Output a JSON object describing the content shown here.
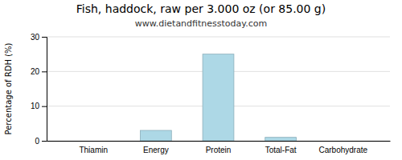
{
  "chart_data": {
    "type": "bar",
    "title": "Fish, haddock, raw per 3.000 oz (or 85.00 g)",
    "subtitle": "www.dietandfitnesstoday.com",
    "categories": [
      "Thiamin",
      "Energy",
      "Protein",
      "Total-Fat",
      "Carbohydrate"
    ],
    "values": [
      0,
      3.0,
      25.0,
      1.0,
      0
    ],
    "color": "#add8e6",
    "ylabel": "Percentage of RDH (%)",
    "ylim": [
      0,
      30
    ],
    "yticks": [
      0,
      10,
      20,
      30
    ],
    "grid": true
  }
}
